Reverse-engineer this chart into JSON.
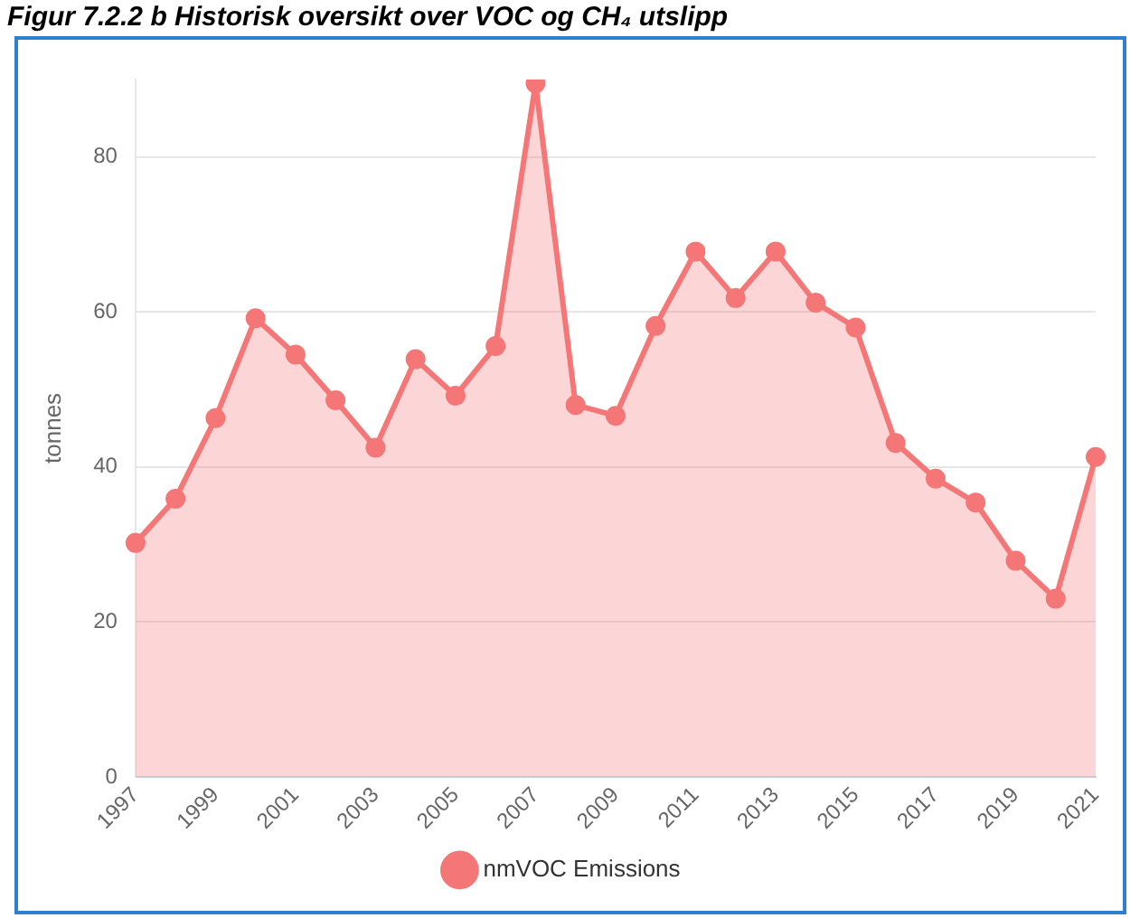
{
  "chart_data": {
    "type": "area",
    "title": "Figur 7.2.2 b Historisk oversikt over VOC og CH₄ utslipp",
    "ylabel": "tonnes",
    "categories": [
      "1997",
      null,
      "1999",
      null,
      "2001",
      null,
      "2003",
      null,
      "2005",
      null,
      "2007",
      null,
      "2009",
      null,
      "2011",
      null,
      "2013",
      null,
      "2015",
      null,
      "2017",
      null,
      "2019",
      null,
      "2021"
    ],
    "series": [
      {
        "name": "nmVOC Emissions",
        "color": "#f47676",
        "values": [
          30.2,
          35.9,
          46.3,
          59.2,
          54.5,
          48.6,
          42.5,
          53.9,
          49.2,
          55.6,
          89.5,
          48.0,
          46.6,
          58.2,
          67.8,
          61.8,
          67.8,
          61.2,
          58.0,
          43.1,
          38.5,
          35.4,
          27.9,
          23.0,
          41.3
        ]
      }
    ],
    "ylim": [
      0,
      90
    ],
    "yticks": [
      0,
      20,
      40,
      60,
      80
    ],
    "grid": "y",
    "legend": "bottom",
    "marker": "circle",
    "line_style": "solid"
  }
}
